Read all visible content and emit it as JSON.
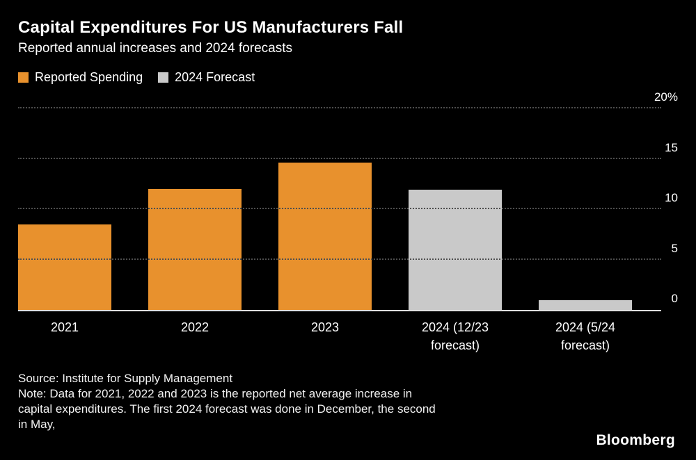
{
  "header": {
    "title": "Capital Expenditures For US Manufacturers Fall",
    "subtitle": "Reported annual increases and 2024 forecasts"
  },
  "legend": [
    {
      "label": "Reported Spending",
      "color": "#E8912D"
    },
    {
      "label": "2024 Forecast",
      "color": "#C9C9C9"
    }
  ],
  "chart_data": {
    "type": "bar",
    "title": "Capital Expenditures For US Manufacturers Fall",
    "subtitle": "Reported annual increases and 2024 forecasts",
    "categories": [
      "2021",
      "2022",
      "2023",
      "2024 (12/23 forecast)",
      "2024 (5/24 forecast)"
    ],
    "category_label_lines": [
      [
        "2021"
      ],
      [
        "2022"
      ],
      [
        "2023"
      ],
      [
        "2024 (12/23",
        "forecast)"
      ],
      [
        "2024 (5/24",
        "forecast)"
      ]
    ],
    "values": [
      8.5,
      12.0,
      14.6,
      11.9,
      1.0
    ],
    "bar_series": [
      "Reported Spending",
      "Reported Spending",
      "Reported Spending",
      "2024 Forecast",
      "2024 Forecast"
    ],
    "bar_colors": [
      "#E8912D",
      "#E8912D",
      "#E8912D",
      "#C9C9C9",
      "#C9C9C9"
    ],
    "ylabel": "",
    "xlabel": "",
    "ylim": [
      0,
      20
    ],
    "yticks": [
      0,
      5,
      10,
      15,
      20
    ],
    "ytick_labels": [
      "0",
      "5",
      "10",
      "15",
      "20%"
    ],
    "grid": "horizontal-dotted",
    "legend_position": "top-left",
    "background": "#000000"
  },
  "footer": {
    "source": "Source: Institute for Supply Management",
    "note_lines": [
      "Note: Data for 2021, 2022 and 2023 is the reported net average increase in",
      "capital expenditures. The first 2024 forecast was done in December, the second",
      "in May,"
    ],
    "brand": "Bloomberg"
  }
}
